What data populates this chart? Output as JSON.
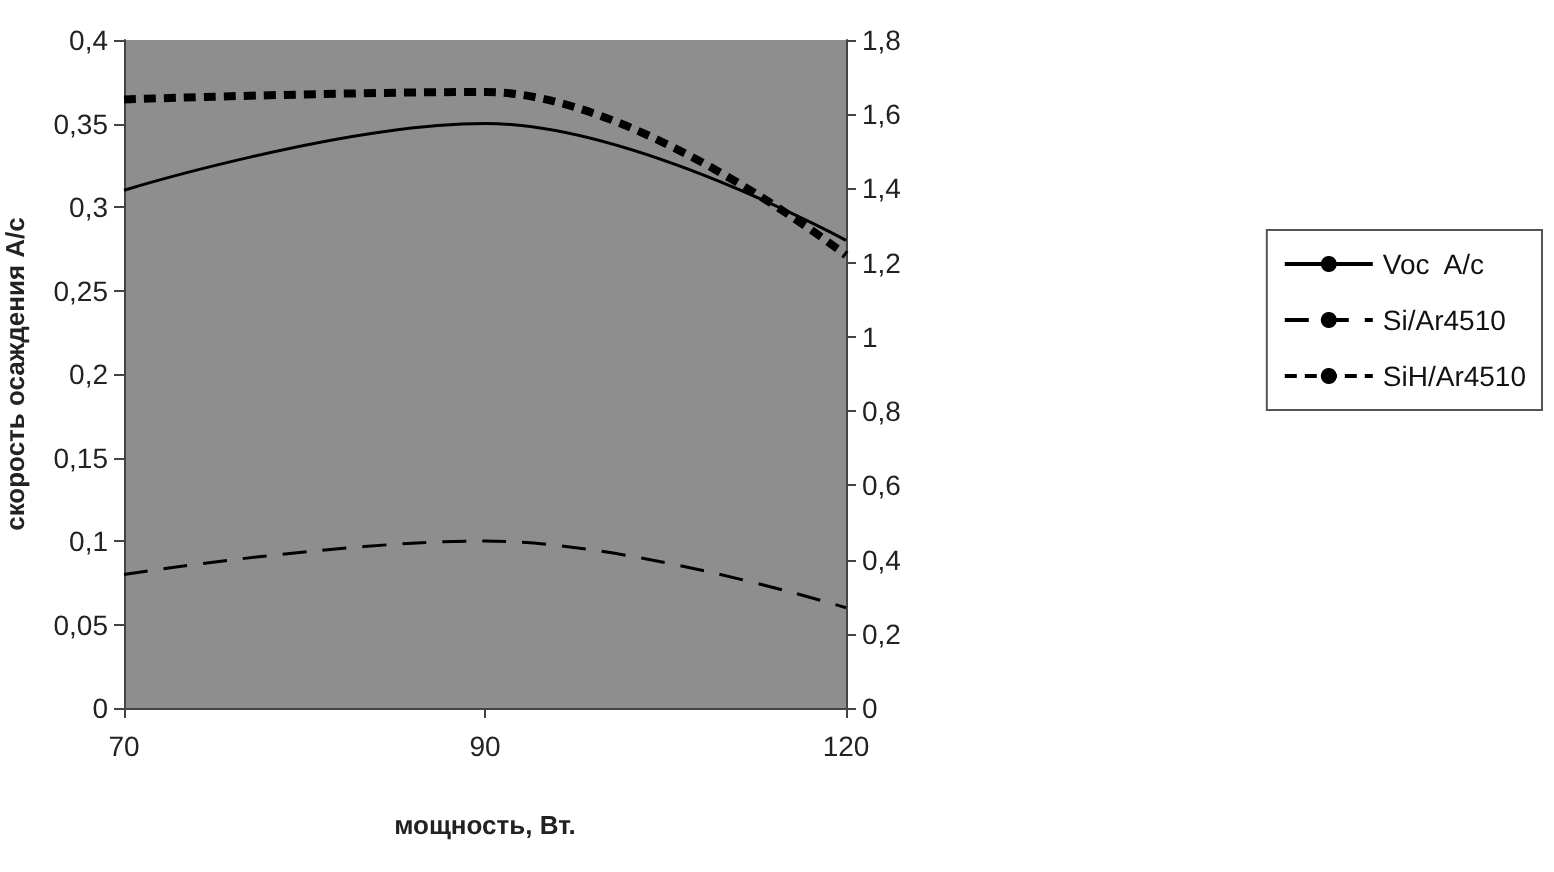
{
  "chart_data": {
    "type": "line",
    "xlabel": "мощность, Вт.",
    "ylabel": "скорость осаждения А/с",
    "categories": [
      "70",
      "90",
      "120"
    ],
    "series": [
      {
        "name": "Voc  A/c",
        "color": "#000000",
        "values": [
          0.31,
          0.35,
          0.28
        ],
        "line_style": "solid"
      },
      {
        "name": "Si/Ar4510",
        "color": "#000000",
        "values": [
          0.08,
          0.1,
          0.06
        ],
        "line_style": "dashed"
      },
      {
        "name": "SiH/Ar4510",
        "color": "#000000",
        "values": [
          1.64,
          1.66,
          1.22
        ],
        "line_style": "dotted",
        "axis": "y2"
      }
    ],
    "ylim": [
      0,
      0.4
    ],
    "yticks": [
      0,
      {
        "value": 0.05,
        "label": "0,05"
      },
      {
        "value": 0.1,
        "label": "0,1"
      },
      {
        "value": 0.15,
        "label": "0,15"
      },
      {
        "value": 0.2,
        "label": "0,2"
      },
      {
        "value": 0.25,
        "label": "0,25"
      },
      {
        "value": 0.3,
        "label": "0,3"
      },
      {
        "value": 0.35,
        "label": "0,35"
      },
      {
        "value": 0.4,
        "label": "0,4"
      }
    ],
    "y2lim": [
      0,
      1.8
    ],
    "y2ticks": [
      0,
      {
        "value": 0.2,
        "label": "0,2"
      },
      {
        "value": 0.4,
        "label": "0,4"
      },
      {
        "value": 0.6,
        "label": "0,6"
      },
      {
        "value": 0.8,
        "label": "0,8"
      },
      1,
      {
        "value": 1.2,
        "label": "1,2"
      },
      {
        "value": 1.4,
        "label": "1,4"
      },
      {
        "value": 1.6,
        "label": "1,6"
      },
      {
        "value": 1.8,
        "label": "1,8"
      }
    ],
    "grid": false,
    "legend": "right",
    "marker": "none"
  }
}
